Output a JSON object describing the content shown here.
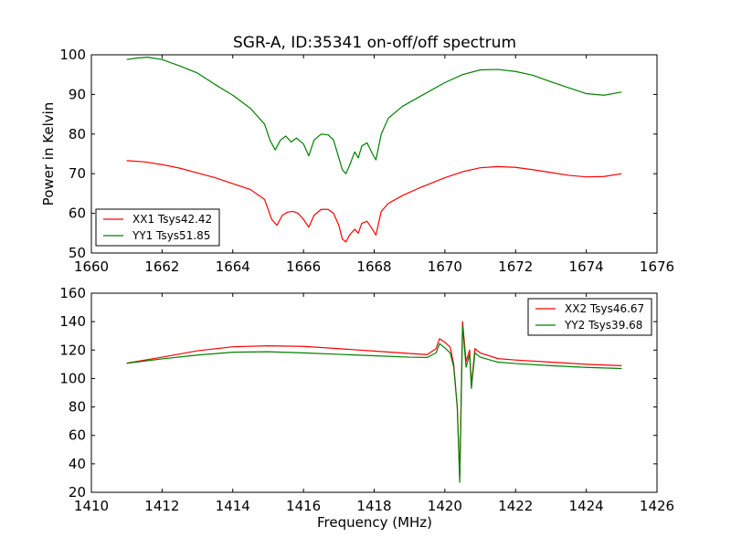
{
  "figure": {
    "title": "SGR-A, ID:35341 on-off/off spectrum"
  },
  "chart_data": [
    {
      "type": "line",
      "title": "SGR-A, ID:35341 on-off/off spectrum",
      "xlabel": "",
      "ylabel": "Power in Kelvin",
      "xlim": [
        1660,
        1676
      ],
      "ylim": [
        50,
        100
      ],
      "xticks": [
        "1660",
        "1662",
        "1664",
        "1666",
        "1668",
        "1670",
        "1672",
        "1674",
        "1676"
      ],
      "yticks": [
        "50",
        "60",
        "70",
        "80",
        "90",
        "100"
      ],
      "grid": false,
      "legend_position": "lower-left",
      "series": [
        {
          "name": "XX1 Tsys42.42",
          "color": "#ff0000",
          "points": [
            [
              1661.0,
              73.3
            ],
            [
              1661.5,
              73.0
            ],
            [
              1662.0,
              72.3
            ],
            [
              1662.5,
              71.4
            ],
            [
              1663.0,
              70.2
            ],
            [
              1663.5,
              69.0
            ],
            [
              1664.0,
              67.5
            ],
            [
              1664.5,
              66.0
            ],
            [
              1664.9,
              63.5
            ],
            [
              1665.1,
              58.5
            ],
            [
              1665.25,
              57.0
            ],
            [
              1665.4,
              59.5
            ],
            [
              1665.55,
              60.3
            ],
            [
              1665.7,
              60.5
            ],
            [
              1665.85,
              60.0
            ],
            [
              1666.0,
              58.5
            ],
            [
              1666.15,
              56.5
            ],
            [
              1666.3,
              59.5
            ],
            [
              1666.5,
              61.0
            ],
            [
              1666.7,
              61.0
            ],
            [
              1666.85,
              60.0
            ],
            [
              1667.0,
              57.0
            ],
            [
              1667.1,
              53.5
            ],
            [
              1667.2,
              52.8
            ],
            [
              1667.3,
              54.5
            ],
            [
              1667.45,
              56.0
            ],
            [
              1667.55,
              55.0
            ],
            [
              1667.65,
              57.5
            ],
            [
              1667.8,
              58.0
            ],
            [
              1667.95,
              56.0
            ],
            [
              1668.05,
              54.5
            ],
            [
              1668.2,
              60.5
            ],
            [
              1668.4,
              62.5
            ],
            [
              1668.8,
              64.5
            ],
            [
              1669.3,
              66.5
            ],
            [
              1670.0,
              69.0
            ],
            [
              1670.5,
              70.5
            ],
            [
              1671.0,
              71.5
            ],
            [
              1671.5,
              71.8
            ],
            [
              1672.0,
              71.6
            ],
            [
              1672.5,
              71.0
            ],
            [
              1673.0,
              70.3
            ],
            [
              1673.5,
              69.6
            ],
            [
              1674.0,
              69.2
            ],
            [
              1674.5,
              69.3
            ],
            [
              1675.0,
              70.0
            ]
          ]
        },
        {
          "name": "YY1 Tsys51.85",
          "color": "#008000",
          "points": [
            [
              1661.0,
              98.8
            ],
            [
              1661.3,
              99.2
            ],
            [
              1661.6,
              99.4
            ],
            [
              1662.0,
              98.8
            ],
            [
              1662.5,
              97.2
            ],
            [
              1663.0,
              95.4
            ],
            [
              1663.5,
              92.5
            ],
            [
              1664.0,
              89.8
            ],
            [
              1664.5,
              86.5
            ],
            [
              1664.9,
              82.5
            ],
            [
              1665.05,
              78.5
            ],
            [
              1665.2,
              76.0
            ],
            [
              1665.35,
              78.5
            ],
            [
              1665.5,
              79.5
            ],
            [
              1665.65,
              78.0
            ],
            [
              1665.8,
              79.0
            ],
            [
              1666.0,
              77.5
            ],
            [
              1666.15,
              74.5
            ],
            [
              1666.3,
              78.5
            ],
            [
              1666.5,
              80.0
            ],
            [
              1666.7,
              79.8
            ],
            [
              1666.85,
              78.5
            ],
            [
              1667.0,
              74.0
            ],
            [
              1667.1,
              71.0
            ],
            [
              1667.2,
              70.0
            ],
            [
              1667.3,
              72.0
            ],
            [
              1667.45,
              75.5
            ],
            [
              1667.55,
              74.0
            ],
            [
              1667.65,
              77.0
            ],
            [
              1667.8,
              77.8
            ],
            [
              1667.95,
              75.0
            ],
            [
              1668.05,
              73.5
            ],
            [
              1668.2,
              80.0
            ],
            [
              1668.4,
              84.0
            ],
            [
              1668.8,
              87.0
            ],
            [
              1669.3,
              89.5
            ],
            [
              1670.0,
              93.0
            ],
            [
              1670.5,
              95.0
            ],
            [
              1671.0,
              96.2
            ],
            [
              1671.5,
              96.3
            ],
            [
              1672.0,
              95.8
            ],
            [
              1672.5,
              94.8
            ],
            [
              1673.0,
              93.2
            ],
            [
              1673.5,
              91.7
            ],
            [
              1674.0,
              90.2
            ],
            [
              1674.5,
              89.8
            ],
            [
              1675.0,
              90.6
            ]
          ]
        }
      ]
    },
    {
      "type": "line",
      "title": "",
      "xlabel": "Frequency (MHz)",
      "ylabel": "",
      "xlim": [
        1410,
        1426
      ],
      "ylim": [
        20,
        160
      ],
      "xticks": [
        "1410",
        "1412",
        "1414",
        "1416",
        "1418",
        "1420",
        "1422",
        "1424",
        "1426"
      ],
      "yticks": [
        "20",
        "40",
        "60",
        "80",
        "100",
        "120",
        "140",
        "160"
      ],
      "grid": false,
      "legend_position": "upper-right",
      "series": [
        {
          "name": "XX2 Tsys46.67",
          "color": "#ff0000",
          "points": [
            [
              1411.0,
              110.8
            ],
            [
              1412.0,
              115.0
            ],
            [
              1413.0,
              119.5
            ],
            [
              1414.0,
              122.3
            ],
            [
              1415.0,
              123.0
            ],
            [
              1416.0,
              122.6
            ],
            [
              1417.0,
              121.0
            ],
            [
              1418.0,
              119.3
            ],
            [
              1419.0,
              117.6
            ],
            [
              1419.5,
              116.8
            ],
            [
              1419.75,
              121.0
            ],
            [
              1419.85,
              128.0
            ],
            [
              1420.0,
              125.5
            ],
            [
              1420.15,
              122.0
            ],
            [
              1420.25,
              110.0
            ],
            [
              1420.35,
              80.0
            ],
            [
              1420.42,
              30.0
            ],
            [
              1420.5,
              140.0
            ],
            [
              1420.6,
              112.0
            ],
            [
              1420.7,
              120.0
            ],
            [
              1420.75,
              95.0
            ],
            [
              1420.85,
              121.0
            ],
            [
              1421.0,
              118.0
            ],
            [
              1421.5,
              114.0
            ],
            [
              1422.0,
              113.0
            ],
            [
              1423.0,
              111.5
            ],
            [
              1424.0,
              110.0
            ],
            [
              1425.0,
              109.0
            ]
          ]
        },
        {
          "name": "YY2 Tsys39.68",
          "color": "#008000",
          "points": [
            [
              1411.0,
              110.7
            ],
            [
              1412.0,
              113.8
            ],
            [
              1413.0,
              116.5
            ],
            [
              1414.0,
              118.5
            ],
            [
              1415.0,
              118.8
            ],
            [
              1416.0,
              118.0
            ],
            [
              1417.0,
              117.0
            ],
            [
              1418.0,
              116.0
            ],
            [
              1419.0,
              115.0
            ],
            [
              1419.5,
              114.8
            ],
            [
              1419.75,
              118.0
            ],
            [
              1419.85,
              124.5
            ],
            [
              1420.0,
              121.5
            ],
            [
              1420.15,
              118.0
            ],
            [
              1420.25,
              108.0
            ],
            [
              1420.35,
              80.0
            ],
            [
              1420.42,
              27.0
            ],
            [
              1420.5,
              137.0
            ],
            [
              1420.6,
              108.0
            ],
            [
              1420.7,
              117.0
            ],
            [
              1420.75,
              93.0
            ],
            [
              1420.85,
              118.0
            ],
            [
              1421.0,
              115.0
            ],
            [
              1421.5,
              111.5
            ],
            [
              1422.0,
              110.5
            ],
            [
              1423.0,
              109.0
            ],
            [
              1424.0,
              107.8
            ],
            [
              1425.0,
              107.0
            ]
          ]
        }
      ]
    }
  ]
}
